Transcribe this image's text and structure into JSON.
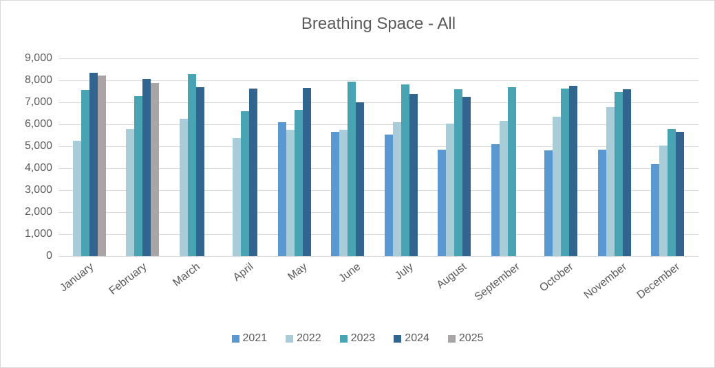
{
  "chart_data": {
    "type": "bar",
    "title": "Breathing Space - All",
    "categories": [
      "January",
      "February",
      "March",
      "April",
      "May",
      "June",
      "July",
      "August",
      "September",
      "October",
      "November",
      "December"
    ],
    "series": [
      {
        "name": "2021",
        "color": "#5A98D2",
        "values": [
          null,
          null,
          null,
          null,
          6090,
          5650,
          5530,
          4830,
          5080,
          4810,
          4850,
          4190
        ]
      },
      {
        "name": "2022",
        "color": "#A8CDD8",
        "values": [
          5260,
          5790,
          6250,
          5370,
          5740,
          5760,
          6100,
          6040,
          6160,
          6330,
          6780,
          5030
        ]
      },
      {
        "name": "2023",
        "color": "#48A3B2",
        "values": [
          7560,
          7290,
          8270,
          6600,
          6670,
          7940,
          7800,
          7590,
          7680,
          7630,
          7480,
          5780
        ]
      },
      {
        "name": "2024",
        "color": "#31658F",
        "values": [
          8350,
          8070,
          7700,
          7640,
          7650,
          6990,
          7360,
          7240,
          null,
          7760,
          7600,
          5650
        ]
      },
      {
        "name": "2025",
        "color": "#AAA4A6",
        "values": [
          8220,
          7860,
          null,
          null,
          null,
          null,
          null,
          null,
          null,
          null,
          null,
          null
        ]
      }
    ],
    "ylim": [
      0,
      9000
    ],
    "ytick_step": 1000,
    "ytick_labels": [
      "0",
      "1,000",
      "2,000",
      "3,000",
      "4,000",
      "5,000",
      "6,000",
      "7,000",
      "8,000",
      "9,000"
    ],
    "grid": true,
    "legend_position": "bottom",
    "colors": {
      "text": "#595959",
      "gridline": "#d9d9d9",
      "background": "#ffffff",
      "border": "#d9d9d9"
    }
  }
}
